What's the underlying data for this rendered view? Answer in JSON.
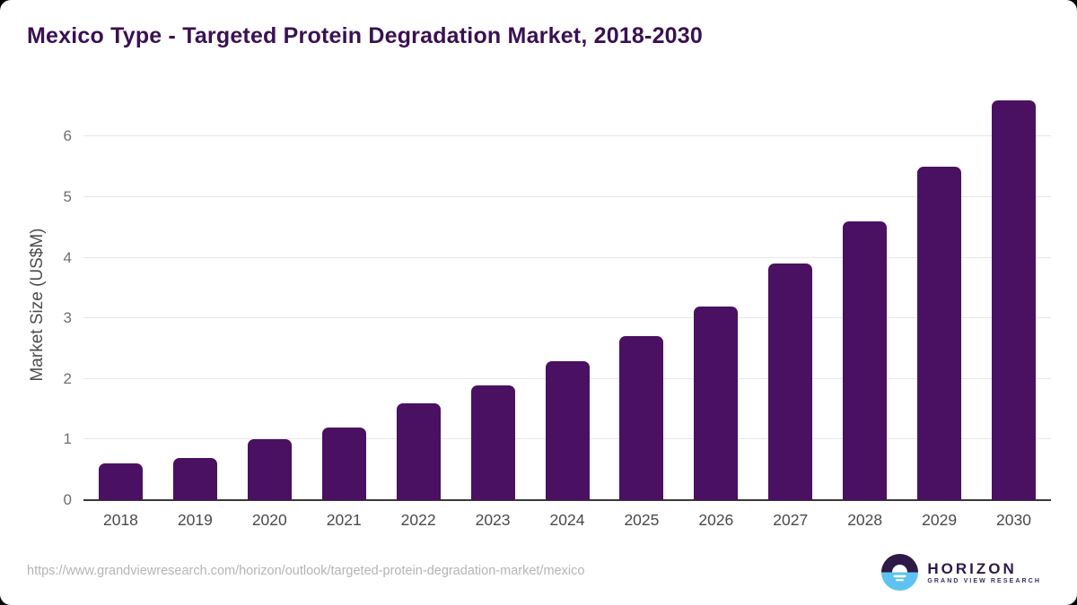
{
  "page": {
    "title": "Mexico Type - Targeted Protein Degradation Market, 2018-2030"
  },
  "chart_data": {
    "type": "bar",
    "title": "Mexico Type - Targeted Protein Degradation Market, 2018-2030",
    "categories": [
      "2018",
      "2019",
      "2020",
      "2021",
      "2022",
      "2023",
      "2024",
      "2025",
      "2026",
      "2027",
      "2028",
      "2029",
      "2030"
    ],
    "values": [
      0.6,
      0.7,
      1.0,
      1.2,
      1.6,
      1.9,
      2.3,
      2.7,
      3.2,
      3.9,
      4.6,
      5.5,
      6.6
    ],
    "xlabel": "",
    "ylabel": "Market Size (US$M)",
    "ylim": [
      0,
      6.8
    ],
    "yticks": [
      0,
      1,
      2,
      3,
      4,
      5,
      6
    ],
    "grid": true,
    "legend": false,
    "bar_color": "#4a1061"
  },
  "footer": {
    "source_url": "https://www.grandviewresearch.com/horizon/outlook/targeted-protein-degradation-market/mexico",
    "logo": {
      "brand": "HORIZON",
      "tagline": "GRAND VIEW RESEARCH"
    }
  },
  "colors": {
    "title_text": "#3a1152",
    "bar": "#4a1061",
    "gridline": "#e7e7e7",
    "axis_line": "#383838",
    "x_tick_label": "#4a4a4a",
    "y_tick_label": "#6f6f6f",
    "axis_title": "#4d4d4d",
    "url_text": "#b5b5b5",
    "logo_purple": "#2e1a47",
    "logo_blue": "#5ec3f0"
  }
}
